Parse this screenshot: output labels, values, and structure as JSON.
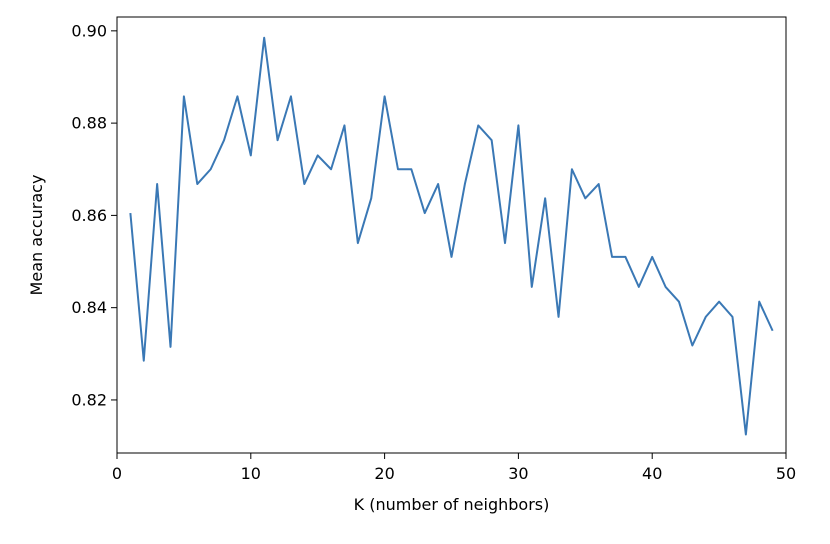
{
  "chart_data": {
    "type": "line",
    "title": "",
    "xlabel": "K (number of neighbors)",
    "ylabel": "Mean accuracy",
    "xlim": [
      0,
      50
    ],
    "ylim": [
      0.8085,
      0.903
    ],
    "xticks": [
      0,
      10,
      20,
      30,
      40,
      50
    ],
    "xtick_labels": [
      "0",
      "10",
      "20",
      "30",
      "40",
      "50"
    ],
    "yticks": [
      0.82,
      0.84,
      0.86,
      0.88,
      0.9
    ],
    "ytick_labels": [
      "0.82",
      "0.84",
      "0.86",
      "0.88",
      "0.90"
    ],
    "grid": false,
    "legend": "none",
    "series": [
      {
        "color": "#3a78b5",
        "x": [
          1,
          2,
          3,
          4,
          5,
          6,
          7,
          8,
          9,
          10,
          11,
          12,
          13,
          14,
          15,
          16,
          17,
          18,
          19,
          20,
          21,
          22,
          23,
          24,
          25,
          26,
          27,
          28,
          29,
          30,
          31,
          32,
          33,
          34,
          35,
          36,
          37,
          38,
          39,
          40,
          41,
          42,
          43,
          44,
          45,
          46,
          47,
          48,
          49
        ],
        "y": [
          0.8605,
          0.8285,
          0.8668,
          0.8315,
          0.8858,
          0.8668,
          0.87,
          0.8763,
          0.8858,
          0.873,
          0.8985,
          0.8763,
          0.8858,
          0.8668,
          0.873,
          0.87,
          0.8795,
          0.854,
          0.8637,
          0.8858,
          0.87,
          0.87,
          0.8605,
          0.8668,
          0.851,
          0.8668,
          0.8795,
          0.8763,
          0.854,
          0.8795,
          0.8445,
          0.8637,
          0.838,
          0.87,
          0.8637,
          0.8668,
          0.851,
          0.851,
          0.8445,
          0.851,
          0.8445,
          0.8413,
          0.8318,
          0.838,
          0.8413,
          0.838,
          0.8125,
          0.8413,
          0.835
        ]
      }
    ]
  }
}
